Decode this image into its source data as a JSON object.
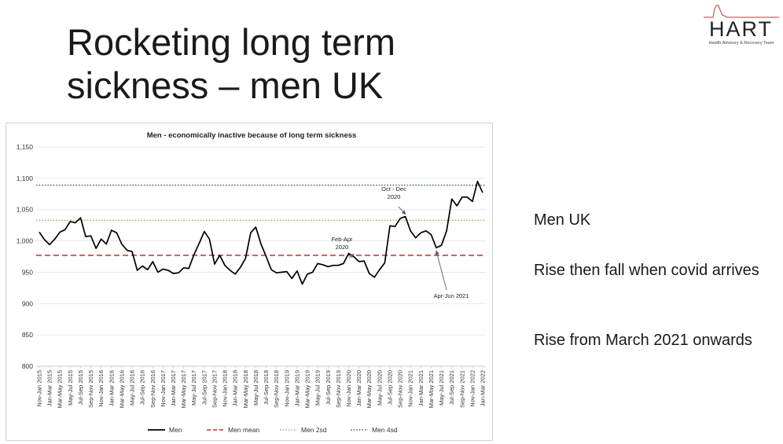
{
  "slide": {
    "title_line1": "Rocketing long term",
    "title_line2": "sickness – men UK",
    "logo_text": "HART",
    "logo_subtitle": "Health Advisory & Recovery Team",
    "side_items": [
      "Men UK",
      "Rise then fall when covid arrives",
      "Rise from March 2021 onwards"
    ]
  },
  "chart_data": {
    "type": "line",
    "title": "Men - economically inactive because of long term sickness",
    "ylim": [
      800,
      1150
    ],
    "yticks": [
      "800",
      "850",
      "900",
      "950",
      "1,000",
      "1,050",
      "1,100",
      "1,150"
    ],
    "ytick_values": [
      800,
      850,
      900,
      950,
      1000,
      1050,
      1100,
      1150
    ],
    "grid": true,
    "legend_position": "bottom",
    "x_labels": [
      "Nov-Jan 2015",
      "Jan-Mar 2015",
      "Mar-May 2015",
      "May-Jul 2015",
      "Jul-Sep 2015",
      "Sep-Nov 2015",
      "Nov-Jan 2016",
      "Jan-Mar 2016",
      "Mar-May 2016",
      "May-Jul 2016",
      "Jul-Sep 2016",
      "Sep-Nov 2016",
      "Nov-Jan 2017",
      "Jan-Mar 2017",
      "Mar-May 2017",
      "May-Jul 2017",
      "Jul-Sep 2017",
      "Sep-Nov 2017",
      "Nov-Jan 2018",
      "Jan-Mar 2018",
      "Mar-May 2018",
      "May-Jul 2018",
      "Jul-Sep 2018",
      "Sep-Nov 2018",
      "Nov-Jan 2019",
      "Jan-Mar 2019",
      "Mar-May 2019",
      "May-Jul 2019",
      "Jul-Sep 2019",
      "Sep-Nov 2019",
      "Nov-Jan 2020",
      "Jan-Mar 2020",
      "Mar-May 2020",
      "May-Jul 2020",
      "Jul-Sep 2020",
      "Sep-Nov 2020",
      "Nov-Jan 2021",
      "Jan-Mar 2021",
      "Mar-May 2021",
      "May-Jul 2021",
      "Jul-Sep 2021",
      "Sep-Nov 2021",
      "Nov-Jan 2022",
      "Jan-Mar 2022"
    ],
    "series": [
      {
        "name": "Men",
        "color": "#000000",
        "style": "solid",
        "values": [
          1014,
          1002,
          994,
          1003,
          1014,
          1018,
          1031,
          1029,
          1037,
          1007,
          1008,
          988,
          1003,
          995,
          1017,
          1013,
          995,
          985,
          983,
          953,
          960,
          954,
          967,
          950,
          955,
          953,
          948,
          949,
          957,
          956,
          978,
          996,
          1015,
          1003,
          963,
          977,
          961,
          953,
          947,
          958,
          972,
          1013,
          1022,
          995,
          975,
          954,
          949,
          950,
          951,
          940,
          952,
          931,
          947,
          950,
          964,
          962,
          959,
          961,
          961,
          964,
          980,
          975,
          967,
          968,
          948,
          942,
          954,
          965,
          1024,
          1023,
          1036,
          1039,
          1016,
          1005,
          1013,
          1016,
          1010,
          989,
          993,
          1016,
          1067,
          1056,
          1070,
          1070,
          1063,
          1095,
          1077
        ]
      },
      {
        "name": "Men mean",
        "color": "#c0504d",
        "style": "dashed",
        "value": 977
      },
      {
        "name": "Men 2sd",
        "color": "#9bbb59",
        "style": "dotted",
        "value": 1033
      },
      {
        "name": "Men 4sd",
        "color": "#4f6077",
        "style": "dotted",
        "value": 1089
      }
    ],
    "annotations": [
      {
        "text_lines": [
          "Feb-Apr",
          "2020"
        ],
        "point_index": 61
      },
      {
        "text_lines": [
          "Oct - Dec",
          "2020"
        ],
        "point_index": 71
      },
      {
        "text_lines": [
          "Apr-Jun 2021"
        ],
        "point_index": 77
      }
    ]
  }
}
